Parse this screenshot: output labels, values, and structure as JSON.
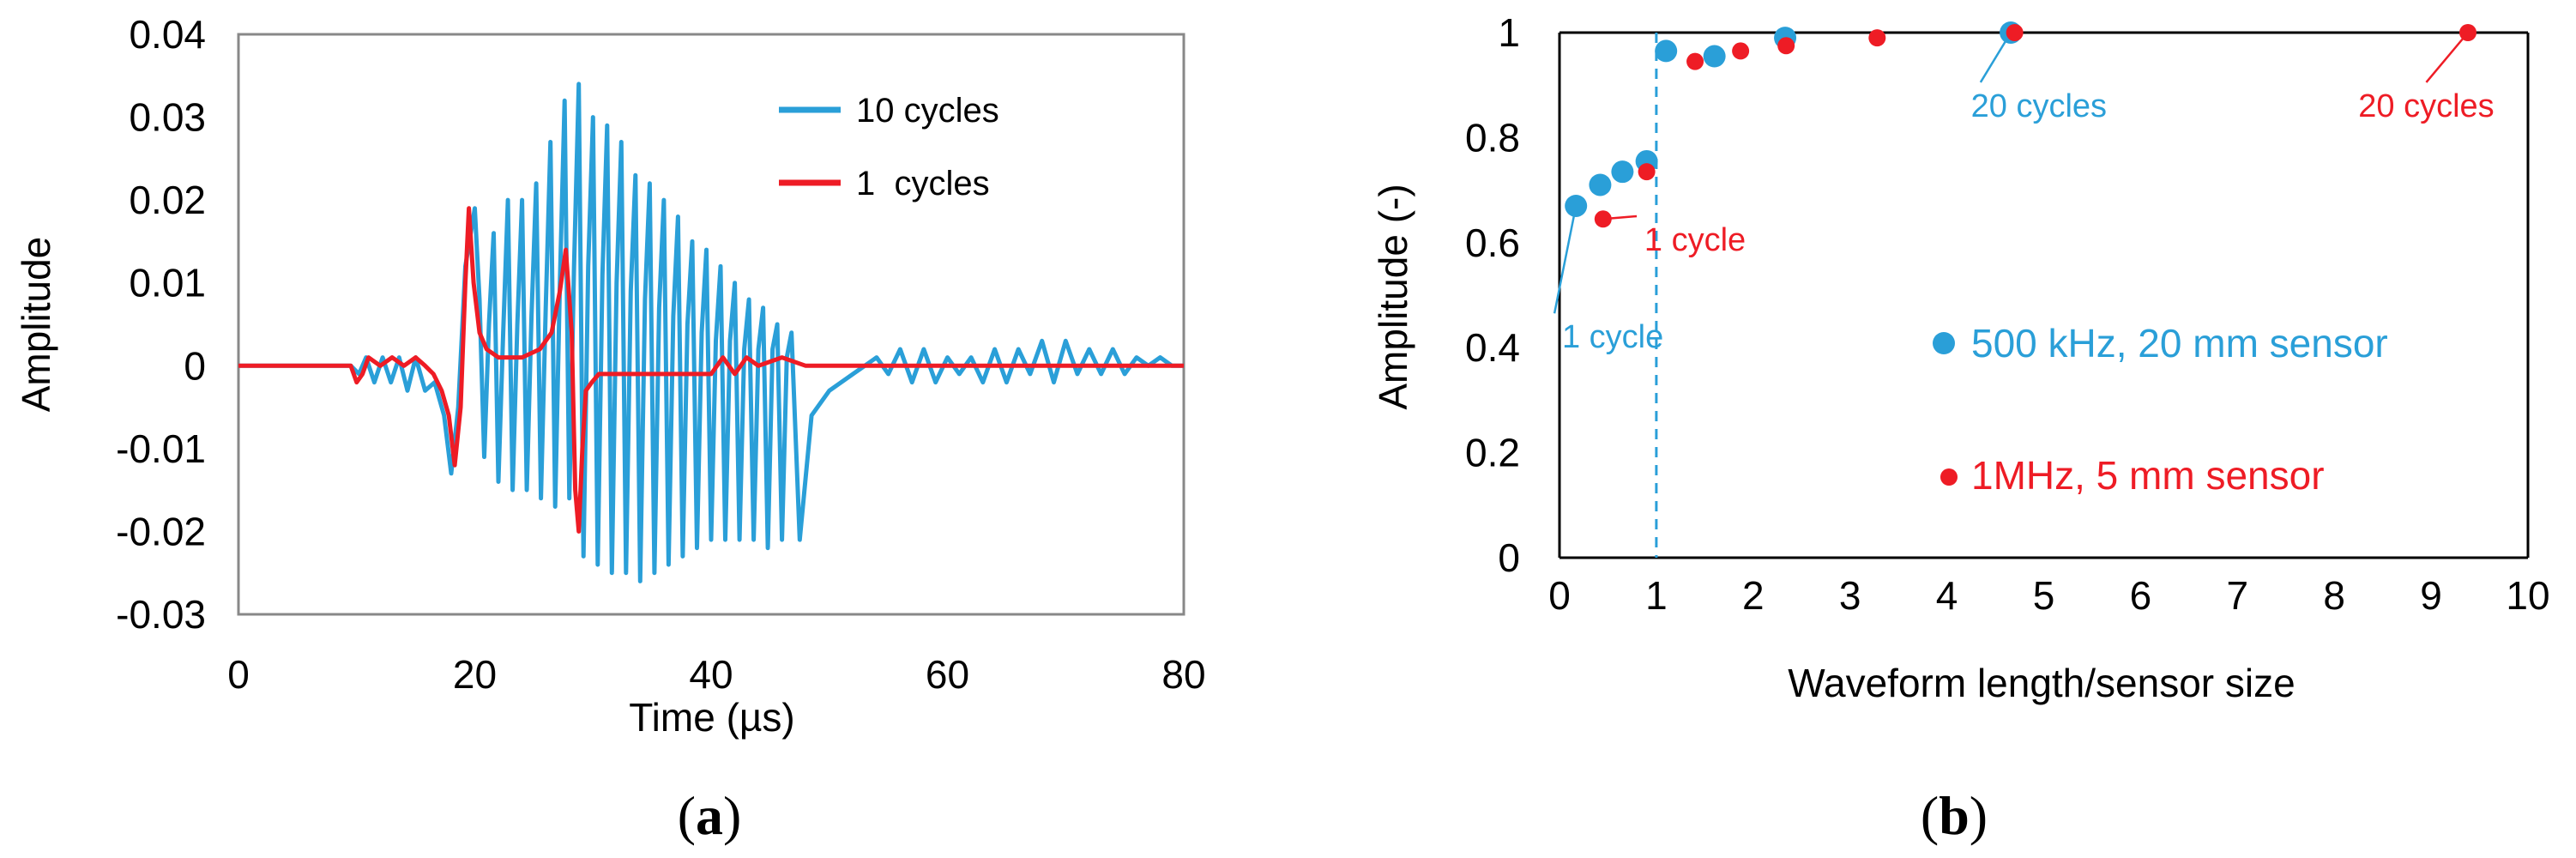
{
  "chart_data": [
    {
      "type": "line",
      "panel_label": "(a)",
      "panel_label_parts": [
        "(",
        "a",
        ")"
      ],
      "title": "",
      "xlabel": "Time  (µs)",
      "ylabel": "Amplitude",
      "xlim": [
        0,
        80
      ],
      "ylim": [
        -0.03,
        0.04
      ],
      "xticks": [
        0,
        20,
        40,
        60,
        80
      ],
      "yticks": [
        -0.03,
        -0.02,
        -0.01,
        0,
        0.01,
        0.02,
        0.03,
        0.04
      ],
      "ytick_labels": [
        "-0.03",
        "-0.02",
        "-0.01",
        "0",
        "0.01",
        "0.02",
        "0.03",
        "0.04"
      ],
      "grid": false,
      "legend_position": "top-right",
      "colors": {
        "series_10": "#2a9fd8",
        "series_1": "#ee1c25",
        "axis": "#888888"
      },
      "series": [
        {
          "name": "10 cycles",
          "color": "#2a9fd8",
          "x": [
            0,
            9.5,
            10.2,
            10.8,
            11.5,
            12.2,
            12.9,
            13.6,
            14.3,
            15.0,
            15.8,
            16.6,
            17.4,
            18.0,
            18.6,
            19.2,
            20.0,
            20.4,
            20.8,
            21.2,
            21.6,
            22.0,
            22.4,
            22.8,
            23.2,
            23.6,
            24.0,
            24.4,
            24.8,
            25.2,
            25.6,
            26.0,
            26.4,
            26.8,
            27.2,
            27.6,
            28.0,
            28.4,
            28.8,
            29.2,
            29.6,
            30.0,
            30.4,
            30.8,
            31.2,
            31.6,
            32.0,
            32.4,
            32.8,
            33.2,
            33.6,
            34.0,
            34.4,
            34.8,
            35.2,
            35.6,
            36.0,
            36.4,
            36.8,
            37.2,
            37.6,
            38.0,
            38.4,
            38.8,
            39.2,
            39.6,
            40.0,
            40.4,
            40.8,
            41.2,
            41.6,
            42.0,
            42.4,
            42.8,
            43.2,
            43.6,
            44.0,
            44.4,
            44.8,
            45.2,
            45.6,
            46.0,
            46.4,
            46.8,
            47.5,
            48.5,
            50.0,
            52.0,
            53.0,
            54.0,
            55.0,
            56.0,
            57.0,
            58.0,
            59.0,
            60.0,
            61.0,
            62.0,
            63.0,
            64.0,
            65.0,
            66.0,
            67.0,
            68.0,
            69.0,
            70.0,
            71.0,
            72.0,
            73.0,
            74.0,
            75.0,
            76.0,
            77.0,
            78.0,
            79.0,
            80.0
          ],
          "y": [
            0,
            0,
            -0.001,
            0.001,
            -0.002,
            0.001,
            -0.002,
            0.001,
            -0.003,
            0.001,
            -0.003,
            -0.002,
            -0.006,
            -0.013,
            -0.005,
            0.012,
            0.019,
            0.008,
            -0.011,
            0.005,
            0.016,
            -0.014,
            0.004,
            0.02,
            -0.015,
            0.005,
            0.02,
            -0.015,
            0.006,
            0.022,
            -0.016,
            0.007,
            0.027,
            -0.017,
            0.01,
            0.032,
            -0.016,
            0.012,
            0.034,
            -0.023,
            0.012,
            0.03,
            -0.024,
            0.011,
            0.029,
            -0.025,
            0.01,
            0.027,
            -0.025,
            0.009,
            0.023,
            -0.026,
            0.008,
            0.022,
            -0.025,
            0.007,
            0.02,
            -0.024,
            0.006,
            0.018,
            -0.023,
            0.005,
            0.015,
            -0.022,
            0.004,
            0.014,
            -0.021,
            0.003,
            0.012,
            -0.021,
            0.003,
            0.01,
            -0.021,
            0.002,
            0.008,
            -0.021,
            0.002,
            0.007,
            -0.022,
            0.002,
            0.005,
            -0.021,
            0.001,
            0.004,
            -0.021,
            -0.006,
            -0.003,
            -0.001,
            0,
            0.001,
            -0.001,
            0.002,
            -0.002,
            0.002,
            -0.002,
            0.001,
            -0.001,
            0.001,
            -0.002,
            0.002,
            -0.002,
            0.002,
            -0.001,
            0.003,
            -0.002,
            0.003,
            -0.001,
            0.002,
            -0.001,
            0.002,
            -0.001,
            0.001,
            0,
            0.001,
            0,
            0
          ]
        },
        {
          "name": "1  cycles",
          "color": "#ee1c25",
          "x": [
            0,
            9.5,
            10.0,
            10.5,
            11.0,
            12.0,
            13.0,
            14.0,
            15.0,
            15.8,
            16.5,
            17.2,
            17.8,
            18.3,
            18.8,
            19.2,
            19.5,
            19.9,
            20.4,
            21.0,
            22.0,
            24.0,
            25.5,
            26.5,
            27.2,
            27.7,
            28.2,
            28.5,
            28.8,
            29.1,
            29.4,
            29.9,
            30.5,
            32.0,
            34.0,
            36.0,
            38.0,
            40.0,
            41.0,
            42.0,
            43.0,
            44.0,
            46.0,
            48.0,
            50.0,
            60.0,
            70.0,
            80.0
          ],
          "y": [
            0,
            0,
            -0.002,
            -0.001,
            0.001,
            0,
            0.001,
            0,
            0.001,
            0,
            -0.001,
            -0.003,
            -0.006,
            -0.012,
            -0.005,
            0.01,
            0.019,
            0.01,
            0.004,
            0.002,
            0.001,
            0.001,
            0.002,
            0.004,
            0.009,
            0.014,
            0.004,
            -0.015,
            -0.02,
            -0.01,
            -0.003,
            -0.002,
            -0.001,
            -0.001,
            -0.001,
            -0.001,
            -0.001,
            -0.001,
            0.001,
            -0.001,
            0.001,
            0,
            0.001,
            0,
            0,
            0,
            0,
            0
          ]
        }
      ]
    },
    {
      "type": "scatter",
      "panel_label": "(b)",
      "panel_label_parts": [
        "(",
        "b",
        ")"
      ],
      "title": "",
      "xlabel": "Waveform length/sensor  size",
      "ylabel": "Amplitude  (-)",
      "xlim": [
        0,
        10
      ],
      "ylim": [
        0,
        1
      ],
      "xticks": [
        0,
        1,
        2,
        3,
        4,
        5,
        6,
        7,
        8,
        9,
        10
      ],
      "yticks": [
        0,
        0.2,
        0.4,
        0.6,
        0.8,
        1
      ],
      "ytick_labels": [
        "0",
        "0.2",
        "0.4",
        "0.6",
        "0.8",
        "1"
      ],
      "grid": false,
      "legend_position": "lower-right",
      "reference_line": {
        "x": 1,
        "style": "dashed",
        "color": "#2a9fd8"
      },
      "series": [
        {
          "name": "500 kHz, 20 mm sensor",
          "color": "#2a9fd8",
          "x": [
            0.17,
            0.42,
            0.65,
            0.9,
            1.1,
            1.6,
            2.33,
            4.66
          ],
          "y": [
            0.67,
            0.71,
            0.735,
            0.755,
            0.965,
            0.955,
            0.99,
            1.0
          ]
        },
        {
          "name": "1MHz, 5 mm sensor",
          "color": "#ee1c25",
          "x": [
            0.45,
            0.9,
            1.4,
            1.87,
            2.34,
            3.28,
            4.7,
            9.38
          ],
          "y": [
            0.645,
            0.735,
            0.945,
            0.965,
            0.975,
            0.99,
            1.0,
            1.0
          ]
        }
      ],
      "annotations": [
        {
          "text": "1 cycle",
          "color": "#2a9fd8",
          "target": [
            0.17,
            0.67
          ],
          "text_at": [
            0.55,
            0.4
          ]
        },
        {
          "text": "1 cycle",
          "color": "#ee1c25",
          "target": [
            0.45,
            0.645
          ],
          "text_at": [
            1.4,
            0.585
          ]
        },
        {
          "text": "20 cycles",
          "color": "#2a9fd8",
          "target": [
            4.66,
            1.0
          ],
          "text_at": [
            4.95,
            0.84
          ]
        },
        {
          "text": "20 cycles",
          "color": "#ee1c25",
          "target": [
            9.38,
            1.0
          ],
          "text_at": [
            8.95,
            0.84
          ]
        }
      ]
    }
  ]
}
